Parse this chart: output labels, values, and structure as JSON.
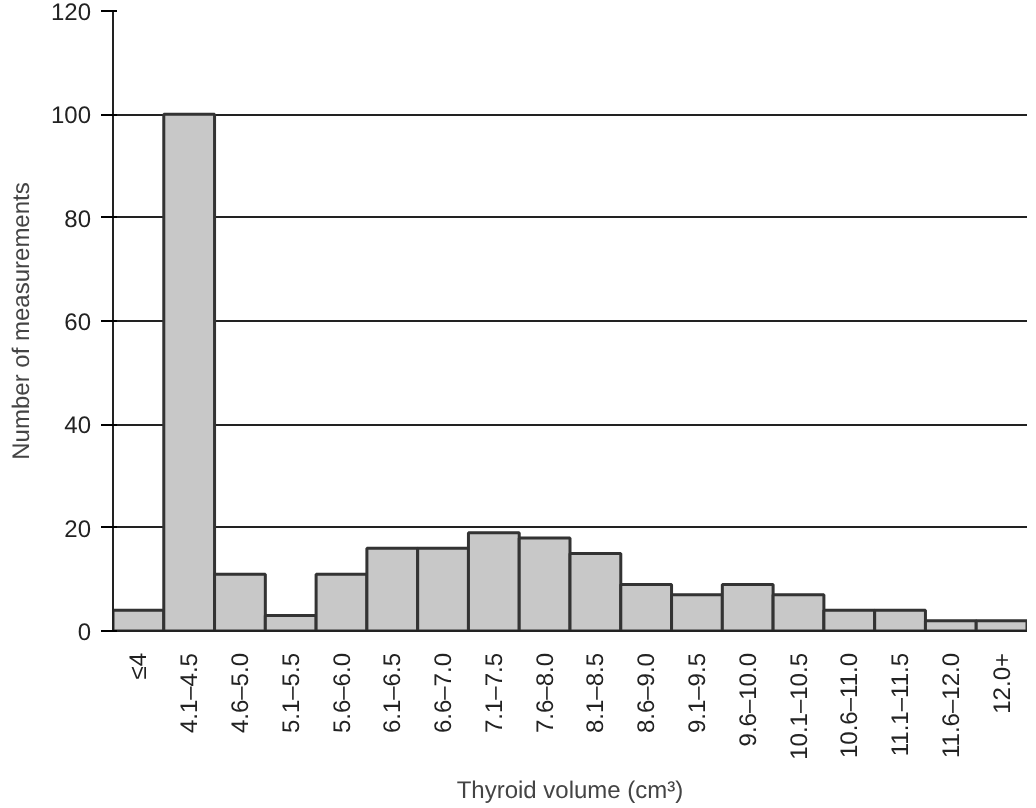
{
  "chart_data": {
    "type": "bar",
    "xlabel": "Thyroid volume (cm³)",
    "ylabel": "Number of measurements",
    "categories": [
      "≤4",
      "4.1–4.5",
      "4.6–5.0",
      "5.1–5.5",
      "5.6–6.0",
      "6.1–6.5",
      "6.6–7.0",
      "7.1–7.5",
      "7.6–8.0",
      "8.1–8.5",
      "8.6–9.0",
      "9.1–9.5",
      "9.6–10.0",
      "10.1–10.5",
      "10.6–11.0",
      "11.1–11.5",
      "11.6–12.0",
      "12.0+"
    ],
    "values": [
      4,
      100,
      11,
      3,
      11,
      16,
      16,
      19,
      18,
      15,
      9,
      7,
      9,
      7,
      4,
      4,
      2,
      2
    ],
    "color": "#c8c8c8",
    "ylim": [
      0,
      120
    ],
    "yticks": [
      0,
      20,
      40,
      60,
      80,
      100,
      120
    ],
    "grid": "y"
  }
}
